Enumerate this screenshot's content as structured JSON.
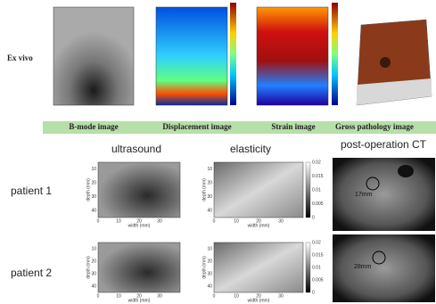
{
  "top": {
    "label": "Ex vivo",
    "captions": [
      "B-mode image",
      "Displacement image",
      "Strain image",
      "Gross pathology image"
    ]
  },
  "columns": [
    "ultrasound",
    "elasticity",
    "post-operation CT"
  ],
  "rows": [
    {
      "label": "patient 1",
      "ct_annotation": "17mm"
    },
    {
      "label": "patient 2",
      "ct_annotation": "28mm"
    }
  ],
  "axes": {
    "depth": "depth (mm)",
    "width": "width (mm)",
    "xticks": [
      "0",
      "10",
      "20",
      "30"
    ],
    "yticks": [
      "10",
      "20",
      "30",
      "40"
    ],
    "colorbar": [
      "0.02",
      "0.015",
      "0.01",
      "0.005",
      "0"
    ]
  }
}
